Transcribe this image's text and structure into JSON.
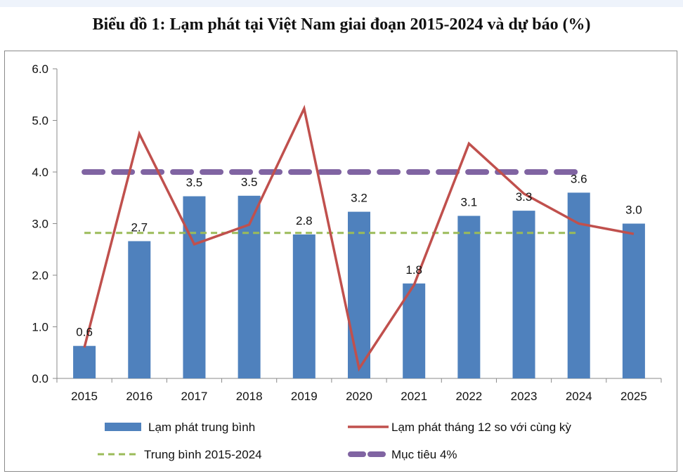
{
  "chart_data": {
    "type": "bar",
    "title": "Biểu đồ 1: Lạm phát tại Việt Nam giai đoạn 2015-2024 và dự báo (%)",
    "categories": [
      "2015",
      "2016",
      "2017",
      "2018",
      "2019",
      "2020",
      "2021",
      "2022",
      "2023",
      "2024",
      "2025"
    ],
    "ylim": [
      0,
      6
    ],
    "yticks": [
      "0.0",
      "1.0",
      "2.0",
      "3.0",
      "4.0",
      "5.0",
      "6.0"
    ],
    "grid": false,
    "legend_position": "bottom",
    "series": [
      {
        "name": "Lạm phát trung bình",
        "kind": "bar",
        "color": "#4f81bd",
        "values": [
          0.63,
          2.66,
          3.53,
          3.54,
          2.79,
          3.23,
          1.84,
          3.15,
          3.25,
          3.6,
          3.0
        ],
        "labels": [
          "0.6",
          "2.7",
          "3.5",
          "3.5",
          "2.8",
          "3.2",
          "1.8",
          "3.1",
          "3.3",
          "3.6",
          "3.0"
        ]
      },
      {
        "name": "Lạm phát tháng 12 so với cùng kỳ",
        "kind": "line",
        "color": "#c0504d",
        "values": [
          0.6,
          4.74,
          2.6,
          2.98,
          5.23,
          0.19,
          1.81,
          4.55,
          3.58,
          3.0,
          2.8
        ]
      },
      {
        "name": "Trung bình 2015-2024",
        "kind": "dashed-line",
        "color": "#9bbb59",
        "value": 2.82,
        "from": "2015",
        "to": "2024"
      },
      {
        "name": "Mục tiêu 4%",
        "kind": "dashed-line",
        "color": "#8064a2",
        "value": 4.0,
        "from": "2015",
        "to": "2024"
      }
    ]
  }
}
